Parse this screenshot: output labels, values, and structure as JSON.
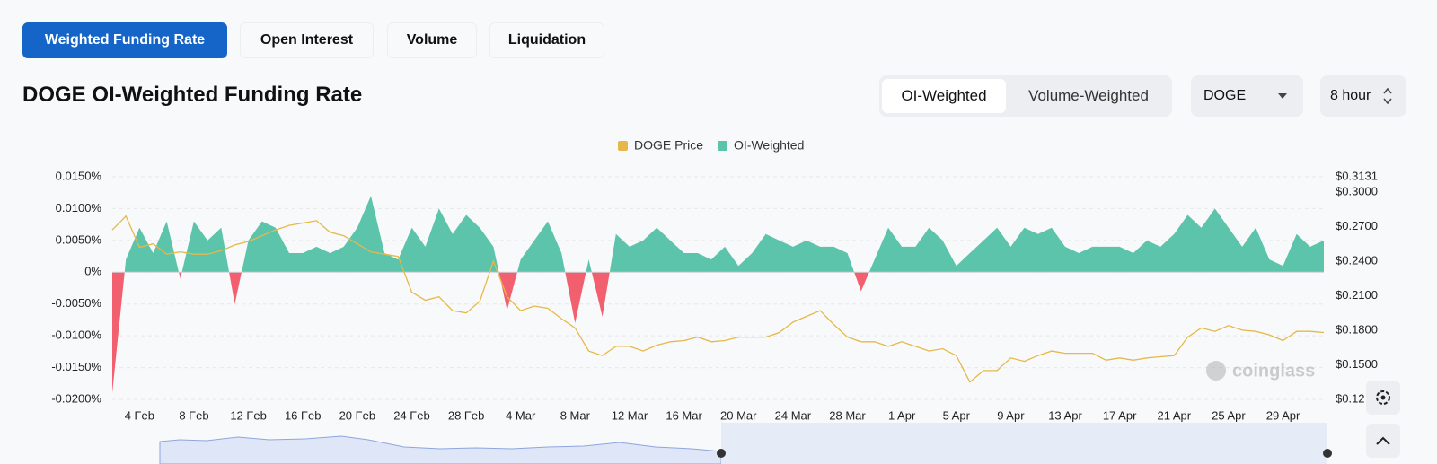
{
  "tabs": [
    "Weighted Funding Rate",
    "Open Interest",
    "Volume",
    "Liquidation"
  ],
  "title": "DOGE OI-Weighted Funding Rate",
  "weighting_toggle": [
    "OI-Weighted",
    "Volume-Weighted"
  ],
  "symbol_select": "DOGE",
  "interval_select": "8 hour",
  "watermark": "coinglass",
  "chart_data": {
    "type": "combo",
    "categories": [
      null,
      null,
      "4 Feb",
      null,
      null,
      null,
      "8 Feb",
      null,
      null,
      null,
      "12 Feb",
      null,
      null,
      null,
      "16 Feb",
      null,
      null,
      null,
      "20 Feb",
      null,
      null,
      null,
      "24 Feb",
      null,
      null,
      null,
      "28 Feb",
      null,
      null,
      null,
      "4 Mar",
      null,
      null,
      null,
      "8 Mar",
      null,
      null,
      null,
      "12 Mar",
      null,
      null,
      null,
      "16 Mar",
      null,
      null,
      null,
      "20 Mar",
      null,
      null,
      null,
      "24 Mar",
      null,
      null,
      null,
      "28 Mar",
      null,
      null,
      null,
      "1 Apr",
      null,
      null,
      null,
      "5 Apr",
      null,
      null,
      null,
      "9 Apr",
      null,
      null,
      null,
      "13 Apr",
      null,
      null,
      null,
      "17 Apr",
      null,
      null,
      null,
      "21 Apr",
      null,
      null,
      null,
      "25 Apr",
      null,
      null,
      null,
      "29 Apr",
      null,
      null,
      null
    ],
    "series": [
      {
        "name": "DOGE Price",
        "type": "line",
        "axis": "y2",
        "color": "#e6b84a",
        "values": [
          0.267,
          0.279,
          0.252,
          0.255,
          0.246,
          0.248,
          0.246,
          0.246,
          0.249,
          0.254,
          0.257,
          0.262,
          0.267,
          0.271,
          0.273,
          0.275,
          0.265,
          0.262,
          0.255,
          0.248,
          0.246,
          0.244,
          0.213,
          0.206,
          0.209,
          0.197,
          0.195,
          0.205,
          0.24,
          0.209,
          0.197,
          0.201,
          0.199,
          0.19,
          0.182,
          0.162,
          0.158,
          0.166,
          0.166,
          0.162,
          0.167,
          0.17,
          0.171,
          0.174,
          0.17,
          0.171,
          0.174,
          0.174,
          0.174,
          0.178,
          0.187,
          0.192,
          0.197,
          0.185,
          0.174,
          0.17,
          0.17,
          0.166,
          0.17,
          0.166,
          0.162,
          0.164,
          0.158,
          0.135,
          0.145,
          0.145,
          0.156,
          0.153,
          0.158,
          0.162,
          0.16,
          0.16,
          0.16,
          0.154,
          0.156,
          0.154,
          0.156,
          0.157,
          0.158,
          0.174,
          0.182,
          0.179,
          0.184,
          0.18,
          0.179,
          0.176,
          0.171,
          0.179,
          0.179,
          0.178
        ]
      },
      {
        "name": "OI-Weighted",
        "type": "area",
        "color": "#5cc4aa",
        "negative_color": "#f2606f",
        "values": [
          -0.019,
          0.002,
          0.007,
          0.003,
          0.008,
          -0.001,
          0.008,
          0.005,
          0.007,
          -0.005,
          0.005,
          0.008,
          0.007,
          0.003,
          0.003,
          0.004,
          0.003,
          0.004,
          0.007,
          0.012,
          0.003,
          0.002,
          0.007,
          0.004,
          0.01,
          0.006,
          0.009,
          0.007,
          0.004,
          -0.006,
          0.002,
          0.005,
          0.008,
          0.003,
          -0.008,
          0.002,
          -0.007,
          0.006,
          0.004,
          0.005,
          0.007,
          0.005,
          0.003,
          0.003,
          0.002,
          0.004,
          0.001,
          0.003,
          0.006,
          0.005,
          0.004,
          0.005,
          0.004,
          0.004,
          0.003,
          -0.003,
          0.002,
          0.007,
          0.004,
          0.004,
          0.007,
          0.005,
          0.001,
          0.003,
          0.005,
          0.007,
          0.004,
          0.007,
          0.006,
          0.007,
          0.004,
          0.003,
          0.004,
          0.004,
          0.004,
          0.003,
          0.005,
          0.004,
          0.006,
          0.009,
          0.007,
          0.01,
          0.007,
          0.004,
          0.007,
          0.002,
          0.001,
          0.006,
          0.004,
          0.005
        ]
      }
    ],
    "ylim": [
      -0.02,
      0.015
    ],
    "yticks": [
      {
        "value": -0.02,
        "label": "-0.0200%"
      },
      {
        "value": -0.015,
        "label": "-0.0150%"
      },
      {
        "value": -0.01,
        "label": "-0.0100%"
      },
      {
        "value": -0.005,
        "label": "-0.0050%"
      },
      {
        "value": 0,
        "label": "0%"
      },
      {
        "value": 0.005,
        "label": "0.0050%"
      },
      {
        "value": 0.01,
        "label": "0.0100%"
      },
      {
        "value": 0.015,
        "label": "0.0150%"
      }
    ],
    "y2lim": [
      0.12,
      0.3131
    ],
    "y2ticks": [
      {
        "value": 0.12,
        "label": "$0.12"
      },
      {
        "value": 0.15,
        "label": "$0.1500"
      },
      {
        "value": 0.18,
        "label": "$0.1800"
      },
      {
        "value": 0.21,
        "label": "$0.2100"
      },
      {
        "value": 0.24,
        "label": "$0.2400"
      },
      {
        "value": 0.27,
        "label": "$0.2700"
      },
      {
        "value": 0.3,
        "label": "$0.3000"
      },
      {
        "value": 0.3131,
        "label": "$0.3131"
      }
    ],
    "grid": true,
    "legend": "top"
  }
}
